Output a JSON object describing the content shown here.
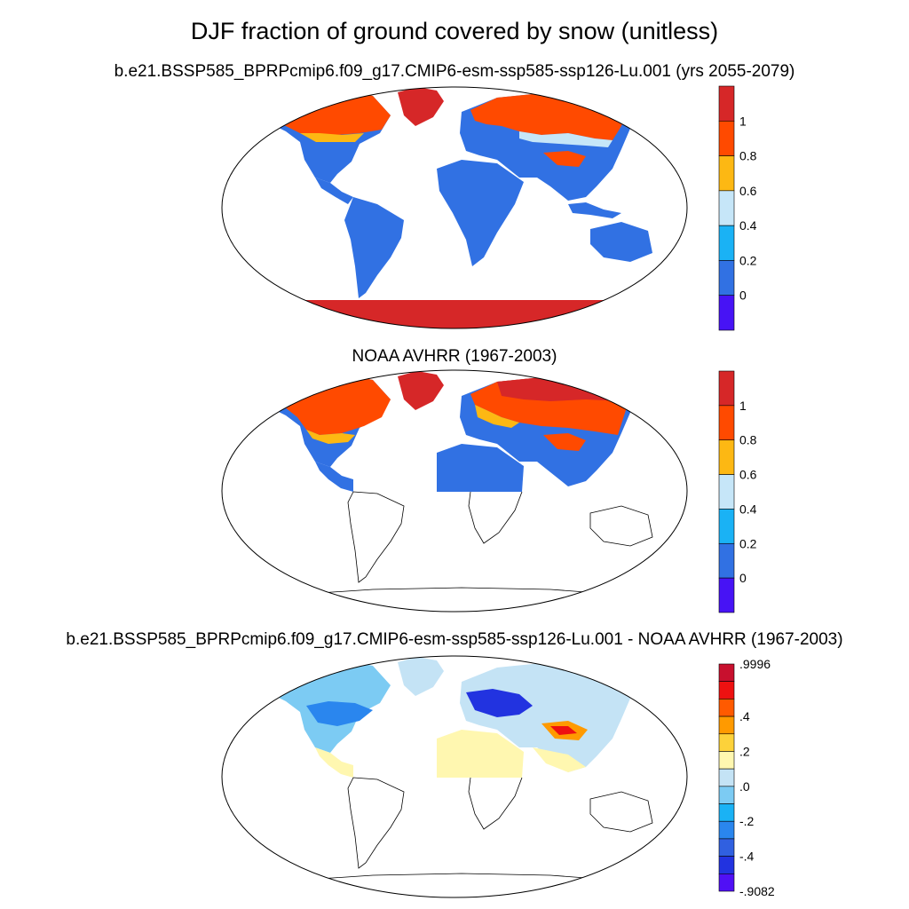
{
  "title": "DJF fraction of ground covered by snow (unitless)",
  "panels": [
    {
      "title": "b.e21.BSSP585_BPRPcmip6.f09_g17.CMIP6-esm-ssp585-ssp126-Lu.001 (yrs 2055-2079)",
      "colorbar": {
        "labels": [
          "1",
          "0.8",
          "0.6",
          "0.4",
          "0.2",
          "0"
        ],
        "colors": [
          "#d62728",
          "#ff4a00",
          "#fdb813",
          "#c6e6f8",
          "#1ab2f5",
          "#3171e3",
          "#4713f5"
        ]
      },
      "coverage": "global land incl. Antarctica and Greenland"
    },
    {
      "title": "NOAA AVHRR (1967-2003)",
      "colorbar": {
        "labels": [
          "1",
          "0.8",
          "0.6",
          "0.4",
          "0.2",
          "0"
        ],
        "colors": [
          "#d62728",
          "#ff4a00",
          "#fdb813",
          "#c6e6f8",
          "#1ab2f5",
          "#3171e3",
          "#4713f5"
        ]
      },
      "coverage": "Northern Hemisphere land only"
    },
    {
      "title": "b.e21.BSSP585_BPRPcmip6.f09_g17.CMIP6-esm-ssp585-ssp126-Lu.001 - NOAA AVHRR (1967-2003)",
      "colorbar": {
        "labels": [
          ".9996",
          ".4",
          ".2",
          ".0",
          "-.2",
          "-.4",
          "-.9082"
        ],
        "colors": [
          "#c8102e",
          "#ee1111",
          "#ff5a00",
          "#ff9a00",
          "#fdd23a",
          "#fff7b0",
          "#c4e3f5",
          "#7ccbf3",
          "#1ab2f5",
          "#2a86ee",
          "#3060e0",
          "#2233e0",
          "#5010f5"
        ]
      }
    }
  ]
}
